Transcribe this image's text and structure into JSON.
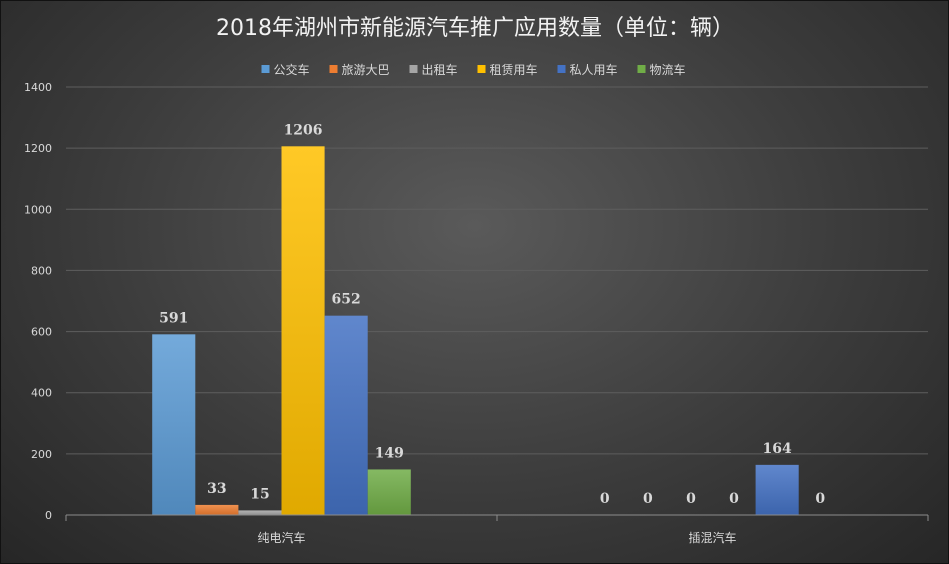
{
  "chart_data": {
    "type": "bar",
    "title": "2018年湖州市新能源汽车推广应用数量（单位：辆）",
    "xlabel": "",
    "ylabel": "",
    "ylim": [
      0,
      1400
    ],
    "yticks": [
      0,
      200,
      400,
      600,
      800,
      1000,
      1200,
      1400
    ],
    "categories": [
      "纯电汽车",
      "插混汽车"
    ],
    "grid": true,
    "legend": "top",
    "series": [
      {
        "name": "公交车",
        "values": [
          591,
          0
        ],
        "color": "#5b9bd5"
      },
      {
        "name": "旅游大巴",
        "values": [
          33,
          0
        ],
        "color": "#ed7d31"
      },
      {
        "name": "出租车",
        "values": [
          15,
          0
        ],
        "color": "#a5a5a5"
      },
      {
        "name": "租赁用车",
        "values": [
          1206,
          0
        ],
        "color": "#ffc000"
      },
      {
        "name": "私人用车",
        "values": [
          652,
          164
        ],
        "color": "#4472c4"
      },
      {
        "name": "物流车",
        "values": [
          149,
          0
        ],
        "color": "#70ad47"
      }
    ]
  }
}
